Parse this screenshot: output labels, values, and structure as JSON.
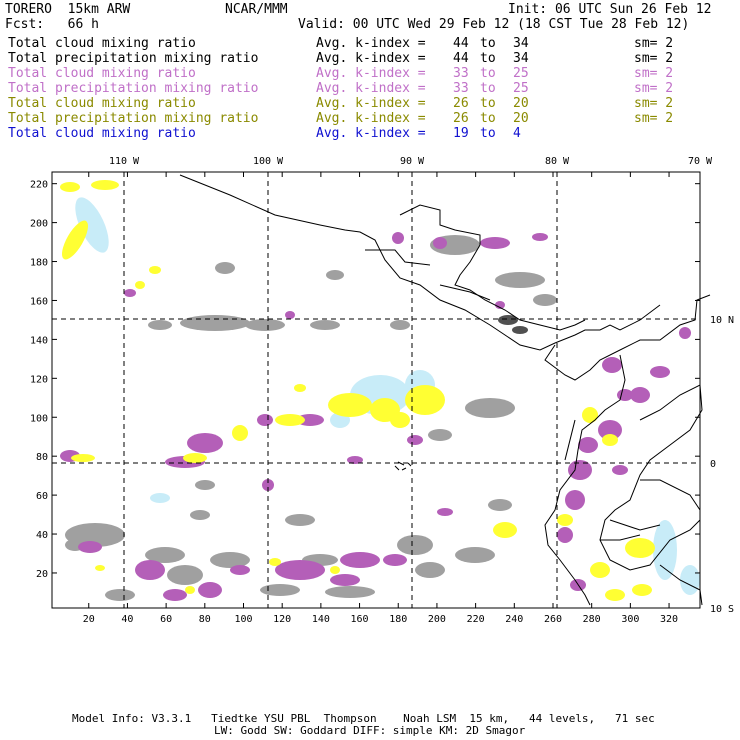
{
  "header": {
    "model_name": "TORERO  15km ARW",
    "center": "NCAR/MMM",
    "init": "Init: 06 UTC Sun 26 Feb 12",
    "forecast": "Fcst:   66 h",
    "valid": "Valid: 00 UTC Wed 29 Feb 12 (18 CST Tue 28 Feb 12)"
  },
  "legend": [
    {
      "field": "Total cloud mixing ratio",
      "index_label": "Avg. k-index =",
      "from": "44",
      "to_word": "to",
      "to": "34",
      "sm": "sm= 2",
      "color": "#000000"
    },
    {
      "field": "Total precipitation mixing ratio",
      "index_label": "Avg. k-index =",
      "from": "44",
      "to_word": "to",
      "to": "34",
      "sm": "sm= 2",
      "color": "#000000"
    },
    {
      "field": "Total cloud mixing ratio",
      "index_label": "Avg. k-index =",
      "from": "33",
      "to_word": "to",
      "to": "25",
      "sm": "sm= 2",
      "color": "#c070c8"
    },
    {
      "field": "Total precipitation mixing ratio",
      "index_label": "Avg. k-index =",
      "from": "33",
      "to_word": "to",
      "to": "25",
      "sm": "sm= 2",
      "color": "#c070c8"
    },
    {
      "field": "Total cloud mixing ratio",
      "index_label": "Avg. k-index =",
      "from": "26",
      "to_word": "to",
      "to": "20",
      "sm": "sm= 2",
      "color": "#8a8a00"
    },
    {
      "field": "Total precipitation mixing ratio",
      "index_label": "Avg. k-index =",
      "from": "26",
      "to_word": "to",
      "to": "20",
      "sm": "sm= 2",
      "color": "#8a8a00"
    },
    {
      "field": "Total cloud mixing ratio",
      "index_label": "Avg. k-index =",
      "from": "19",
      "to_word": "to",
      "to": "4",
      "sm": "",
      "color": "#1010d0"
    }
  ],
  "map": {
    "x_ticks": [
      "20",
      "40",
      "60",
      "80",
      "100",
      "120",
      "140",
      "160",
      "180",
      "200",
      "220",
      "240",
      "260",
      "280",
      "300",
      "320"
    ],
    "y_ticks": [
      "20",
      "40",
      "60",
      "80",
      "100",
      "120",
      "140",
      "160",
      "180",
      "200",
      "220"
    ],
    "lon_labels": [
      "110 W",
      "100 W",
      "90 W",
      "80 W",
      "70 W"
    ],
    "lat_labels": [
      "10 N",
      "0",
      "10 S"
    ],
    "colors": {
      "gray": "#a0a0a0",
      "dark_gray": "#505050",
      "purple": "#b45fb8",
      "yellow": "#ffff33",
      "light_blue": "#c8ecf8"
    }
  },
  "footer": {
    "line1": "Model Info: V3.3.1   Tiedtke YSU PBL  Thompson    Noah LSM  15 km,   44 levels,   71 sec",
    "line2": "LW: Godd SW: Goddard DIFF: simple KM: 2D Smagor"
  }
}
